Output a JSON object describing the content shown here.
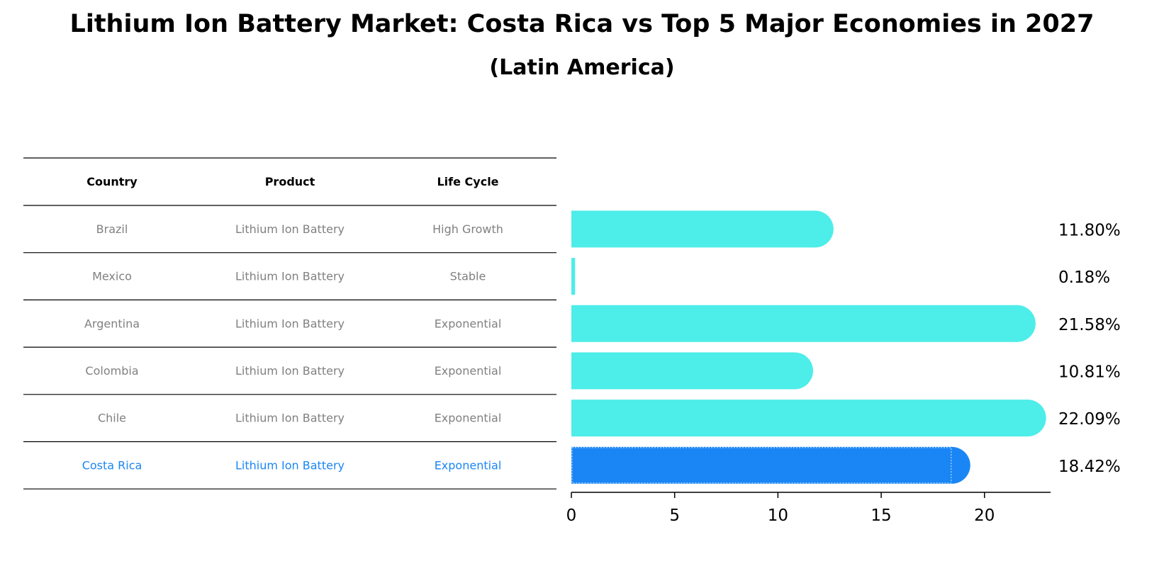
{
  "title": "Lithium Ion Battery Market: Costa Rica vs Top 5 Major Economies in 2027",
  "subtitle": "(Latin America)",
  "colors": {
    "bar": "#4dede9",
    "highlight": "#1a86f5",
    "row_text": "#808080",
    "highlight_text": "#1a86f5",
    "axis": "#000000"
  },
  "table": {
    "headers": [
      "Country",
      "Product",
      "Life Cycle"
    ],
    "rows": [
      {
        "country": "Brazil",
        "product": "Lithium Ion Battery",
        "life_cycle": "High Growth",
        "highlight": false
      },
      {
        "country": "Mexico",
        "product": "Lithium Ion Battery",
        "life_cycle": "Stable",
        "highlight": false
      },
      {
        "country": "Argentina",
        "product": "Lithium Ion Battery",
        "life_cycle": "Exponential",
        "highlight": false
      },
      {
        "country": "Colombia",
        "product": "Lithium Ion Battery",
        "life_cycle": "Exponential",
        "highlight": false
      },
      {
        "country": "Chile",
        "product": "Lithium Ion Battery",
        "life_cycle": "Exponential",
        "highlight": false
      },
      {
        "country": "Costa Rica",
        "product": "Lithium Ion Battery",
        "life_cycle": "Exponential",
        "highlight": true
      }
    ]
  },
  "chart_data": {
    "type": "bar",
    "orientation": "horizontal",
    "categories": [
      "Brazil",
      "Mexico",
      "Argentina",
      "Colombia",
      "Chile",
      "Costa Rica"
    ],
    "values": [
      11.8,
      0.18,
      21.58,
      10.81,
      22.09,
      18.42
    ],
    "value_labels": [
      "11.80%",
      "0.18%",
      "21.58%",
      "10.81%",
      "22.09%",
      "18.42%"
    ],
    "highlight_category": "Costa Rica",
    "xlim": [
      0,
      23.2
    ],
    "xticks": [
      0,
      5,
      10,
      15,
      20
    ],
    "grid": false,
    "title": "Lithium Ion Battery Market: Costa Rica vs Top 5 Major Economies in 2027",
    "subtitle": "(Latin America)"
  }
}
